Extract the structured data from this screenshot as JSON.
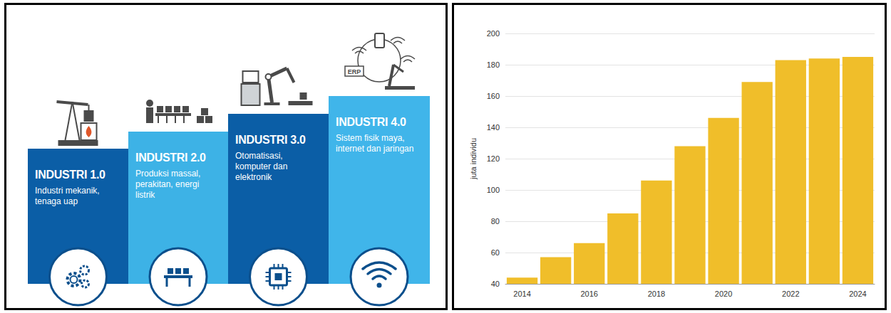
{
  "diagram": {
    "stages": [
      {
        "title": "INDUSTRI 1.0",
        "description": "Industri mekanik, tenaga uap"
      },
      {
        "title": "INDUSTRI 2.0",
        "description": "Produksi massal, perakitan, energi listrik"
      },
      {
        "title": "INDUSTRI 3.0",
        "description": "Otomatisasi, komputer dan elektronik"
      },
      {
        "title": "INDUSTRI 4.0",
        "description": "Sistem fisik maya, internet dan jaringan",
        "icon_text": "ERP"
      }
    ]
  },
  "chart_data": {
    "type": "bar",
    "categories": [
      "2014",
      null,
      "2016",
      null,
      "2018",
      null,
      "2020",
      null,
      "2022",
      null,
      "2024"
    ],
    "values": [
      44,
      57,
      66,
      85,
      106,
      128,
      146,
      169,
      183,
      184,
      185
    ],
    "color": "#f0be2a",
    "y_label": "juta individu",
    "ylim": [
      40,
      200
    ],
    "yticks": [
      40,
      60,
      80,
      100,
      120,
      140,
      160,
      180,
      200
    ],
    "grid": true
  }
}
